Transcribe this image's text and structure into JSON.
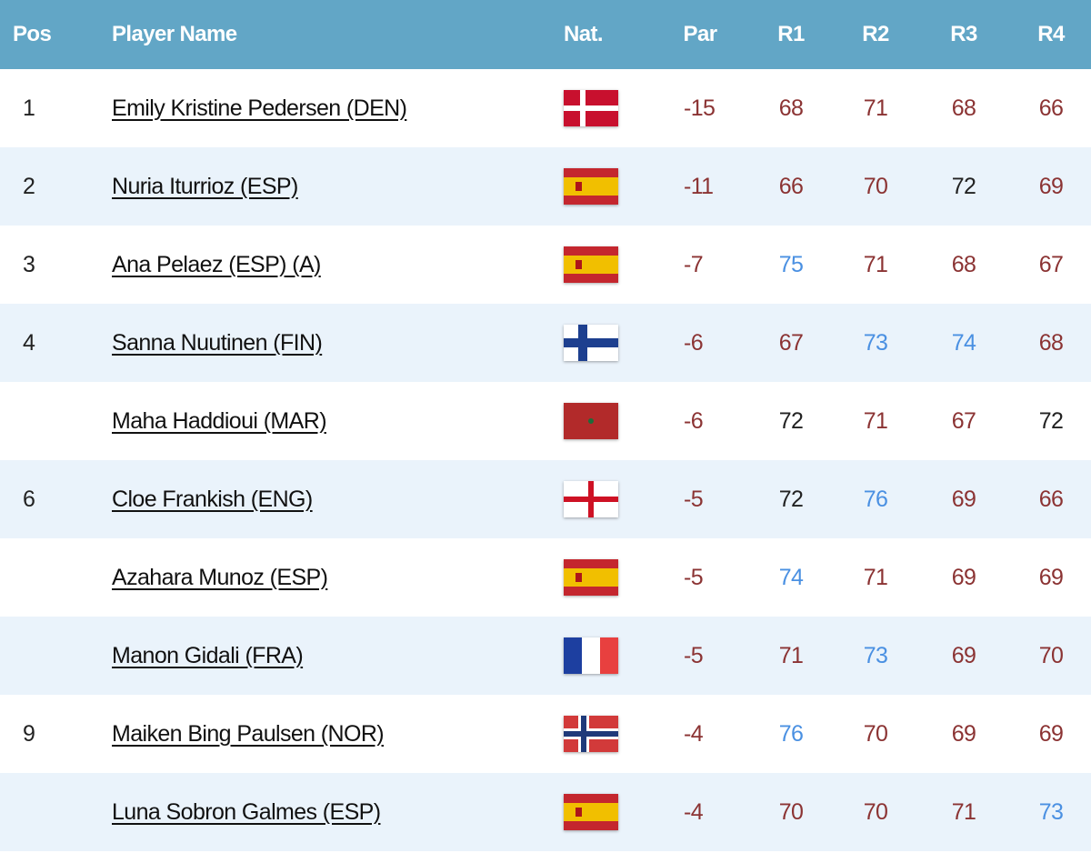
{
  "table": {
    "columns": [
      "Pos",
      "Player Name",
      "Nat.",
      "Par",
      "R1",
      "R2",
      "R3",
      "R4"
    ],
    "rows": [
      {
        "pos": 1,
        "player": "Emily Kristine Pedersen (DEN)",
        "par": -15,
        "rounds": [
          68,
          71,
          68,
          66
        ],
        "round_colors": [
          "#8b3333",
          "#8b3333",
          "#8b3333",
          "#8b3333"
        ]
      },
      {
        "pos": 2,
        "player": "Nuria Iturrioz (ESP)",
        "par": -11,
        "rounds": [
          66,
          70,
          72,
          69
        ],
        "round_colors": [
          "#8b3333",
          "#8b3333",
          "#222222",
          "#8b3333"
        ]
      },
      {
        "pos": 3,
        "player": "Ana Pelaez (ESP) (A)",
        "par": -7,
        "rounds": [
          75,
          71,
          68,
          67
        ],
        "round_colors": [
          "#4a90e2",
          "#8b3333",
          "#8b3333",
          "#8b3333"
        ]
      },
      {
        "pos": 4,
        "player": "Sanna Nuutinen (FIN)",
        "par": -6,
        "rounds": [
          67,
          73,
          74,
          68
        ],
        "round_colors": [
          "#8b3333",
          "#4a90e2",
          "#4a90e2",
          "#8b3333"
        ]
      },
      {
        "pos": null,
        "player": "Maha Haddioui (MAR)",
        "par": -6,
        "rounds": [
          72,
          71,
          67,
          72
        ],
        "round_colors": [
          "#222222",
          "#8b3333",
          "#8b3333",
          "#222222"
        ]
      },
      {
        "pos": 6,
        "player": "Cloe Frankish (ENG)",
        "par": -5,
        "rounds": [
          72,
          76,
          69,
          66
        ],
        "round_colors": [
          "#222222",
          "#4a90e2",
          "#8b3333",
          "#8b3333"
        ]
      },
      {
        "pos": null,
        "player": "Azahara Munoz (ESP)",
        "par": -5,
        "rounds": [
          74,
          71,
          69,
          69
        ],
        "round_colors": [
          "#4a90e2",
          "#8b3333",
          "#8b3333",
          "#8b3333"
        ]
      },
      {
        "pos": null,
        "player": "Manon Gidali (FRA)",
        "par": -5,
        "rounds": [
          71,
          73,
          69,
          70
        ],
        "round_colors": [
          "#8b3333",
          "#4a90e2",
          "#8b3333",
          "#8b3333"
        ]
      },
      {
        "pos": 9,
        "player": "Maiken Bing Paulsen (NOR)",
        "par": -4,
        "rounds": [
          76,
          70,
          69,
          69
        ],
        "round_colors": [
          "#4a90e2",
          "#8b3333",
          "#8b3333",
          "#8b3333"
        ]
      },
      {
        "pos": null,
        "player": "Luna Sobron Galmes (ESP)",
        "par": -4,
        "rounds": [
          70,
          70,
          71,
          73
        ],
        "round_colors": [
          "#8b3333",
          "#8b3333",
          "#8b3333",
          "#4a90e2"
        ]
      }
    ]
  }
}
